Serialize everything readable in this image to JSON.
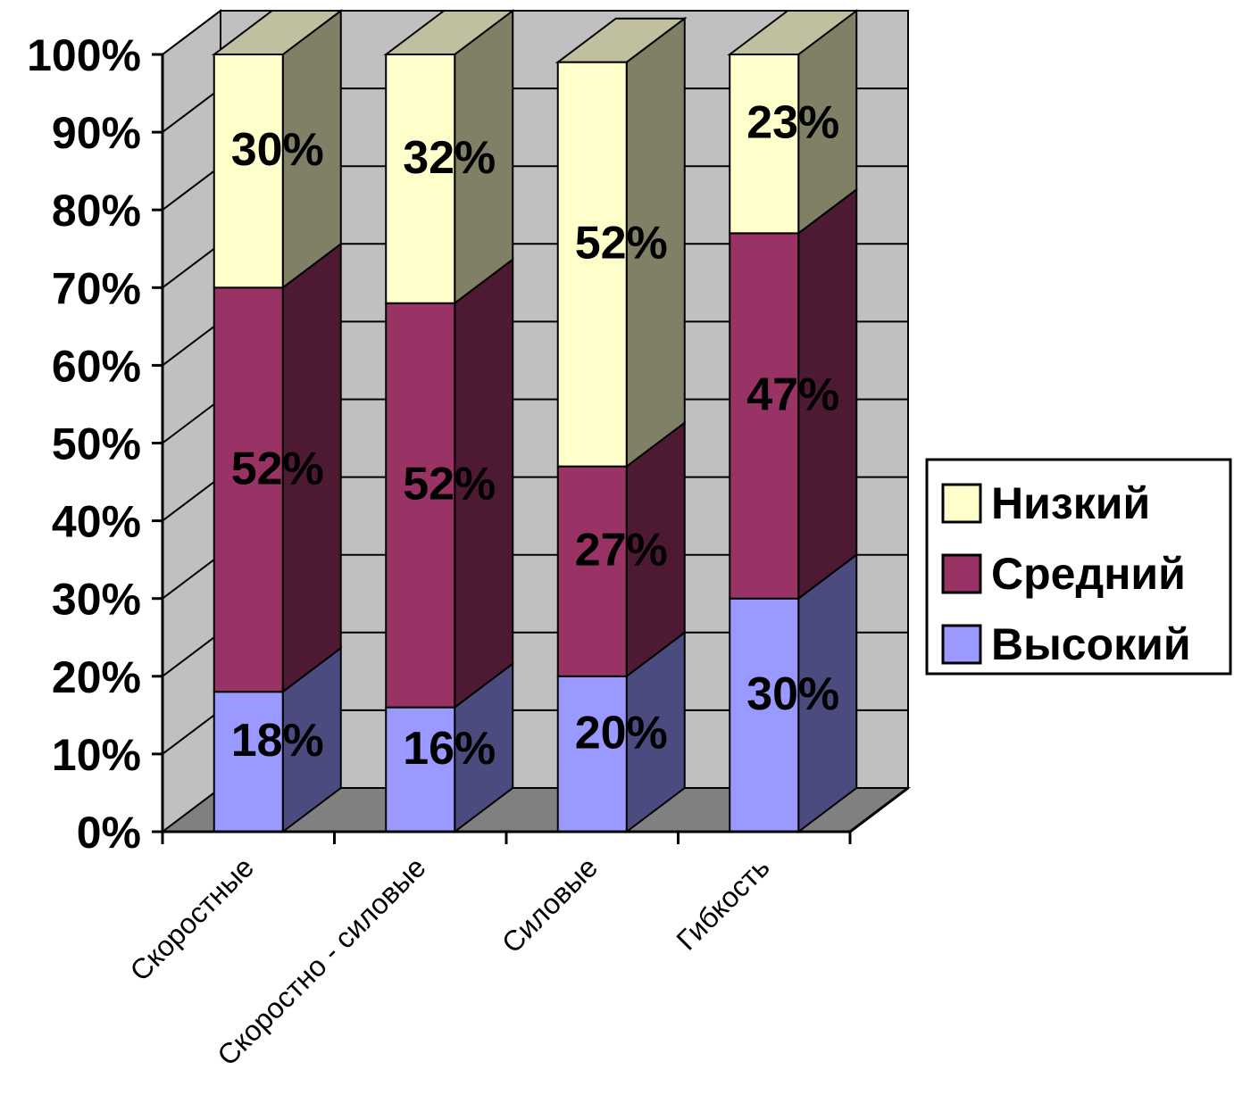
{
  "chart_data": {
    "type": "bar",
    "stacked": "percent",
    "three_d": true,
    "categories": [
      "Скоростные",
      "Скоростно - силовые",
      "Силовые",
      "Гибкость"
    ],
    "series": [
      {
        "name": "Высокий",
        "values": [
          18,
          16,
          20,
          30
        ],
        "labels": [
          "18%",
          "16%",
          "20%",
          "30%"
        ],
        "color": "#9999ff",
        "side_color": "#4b4b80"
      },
      {
        "name": "Средний",
        "values": [
          52,
          52,
          27,
          47
        ],
        "labels": [
          "52%",
          "52%",
          "27%",
          "47%"
        ],
        "color": "#993366",
        "side_color": "#4d1933"
      },
      {
        "name": "Низкий",
        "values": [
          30,
          32,
          52,
          23
        ],
        "labels": [
          "30%",
          "32%",
          "52%",
          "23%"
        ],
        "color": "#ffffcc",
        "side_color": "#808066"
      }
    ],
    "y_ticks": [
      "0%",
      "10%",
      "20%",
      "30%",
      "40%",
      "50%",
      "60%",
      "70%",
      "80%",
      "90%",
      "100%"
    ],
    "ylim": [
      0,
      100
    ],
    "grid": true,
    "legend_position": "right",
    "legend_order": [
      "Низкий",
      "Средний",
      "Высокий"
    ],
    "title": "",
    "xlabel": "",
    "ylabel": ""
  }
}
